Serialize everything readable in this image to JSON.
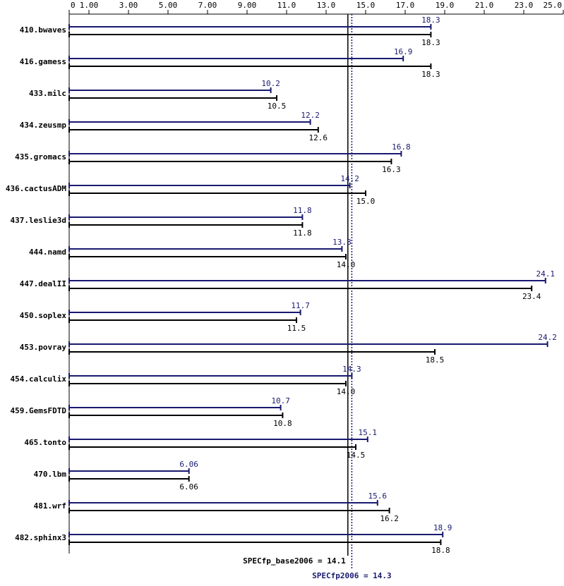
{
  "chart_data": {
    "type": "bar",
    "orientation": "horizontal",
    "categories": [
      "410.bwaves",
      "416.gamess",
      "433.milc",
      "434.zeusmp",
      "435.gromacs",
      "436.cactusADM",
      "437.leslie3d",
      "444.namd",
      "447.dealII",
      "450.soplex",
      "453.povray",
      "454.calculix",
      "459.GemsFDTD",
      "465.tonto",
      "470.lbm",
      "481.wrf",
      "482.sphinx3"
    ],
    "series": [
      {
        "color": "#191970",
        "values": [
          18.3,
          16.9,
          10.2,
          12.2,
          16.8,
          14.2,
          11.8,
          13.8,
          24.1,
          11.7,
          24.2,
          14.3,
          10.7,
          15.1,
          6.06,
          15.6,
          18.9
        ]
      },
      {
        "color": "#000000",
        "values": [
          18.3,
          18.3,
          10.5,
          12.6,
          16.3,
          15.0,
          11.8,
          14.0,
          23.4,
          11.5,
          18.5,
          14.0,
          10.8,
          14.5,
          6.06,
          16.2,
          18.8
        ],
        "value_labels": [
          "18.3",
          "18.3",
          "10.5",
          "12.6",
          "16.3",
          "15.0",
          "11.8",
          "14.0",
          "23.4",
          "11.5",
          "18.5",
          "14.0",
          "10.8",
          "14.5",
          "6.06",
          "16.2",
          "18.8"
        ]
      }
    ],
    "xlim": [
      0,
      25
    ],
    "xticks": [
      0,
      {
        "value": 1,
        "label": "1.00"
      },
      {
        "value": 3,
        "label": "3.00"
      },
      {
        "value": 5,
        "label": "5.00"
      },
      {
        "value": 7,
        "label": "7.00"
      },
      {
        "value": 9,
        "label": "9.00"
      },
      {
        "value": 11,
        "label": "11.0"
      },
      {
        "value": 13,
        "label": "13.0"
      },
      {
        "value": 15,
        "label": "15.0"
      },
      {
        "value": 17,
        "label": "17.0"
      },
      {
        "value": 19,
        "label": "19.0"
      },
      {
        "value": 21,
        "label": "21.0"
      },
      {
        "value": 23,
        "label": "23.0"
      },
      {
        "value": 25,
        "label": "25.0"
      }
    ],
    "reference_lines": [
      {
        "label": "SPECfp_base2006 = 14.1",
        "value": 14.1,
        "color": "#000000",
        "style": "solid"
      },
      {
        "label": "SPECfp2006 = 14.3",
        "value": 14.3,
        "color": "#191970",
        "style": "dotted"
      }
    ]
  }
}
